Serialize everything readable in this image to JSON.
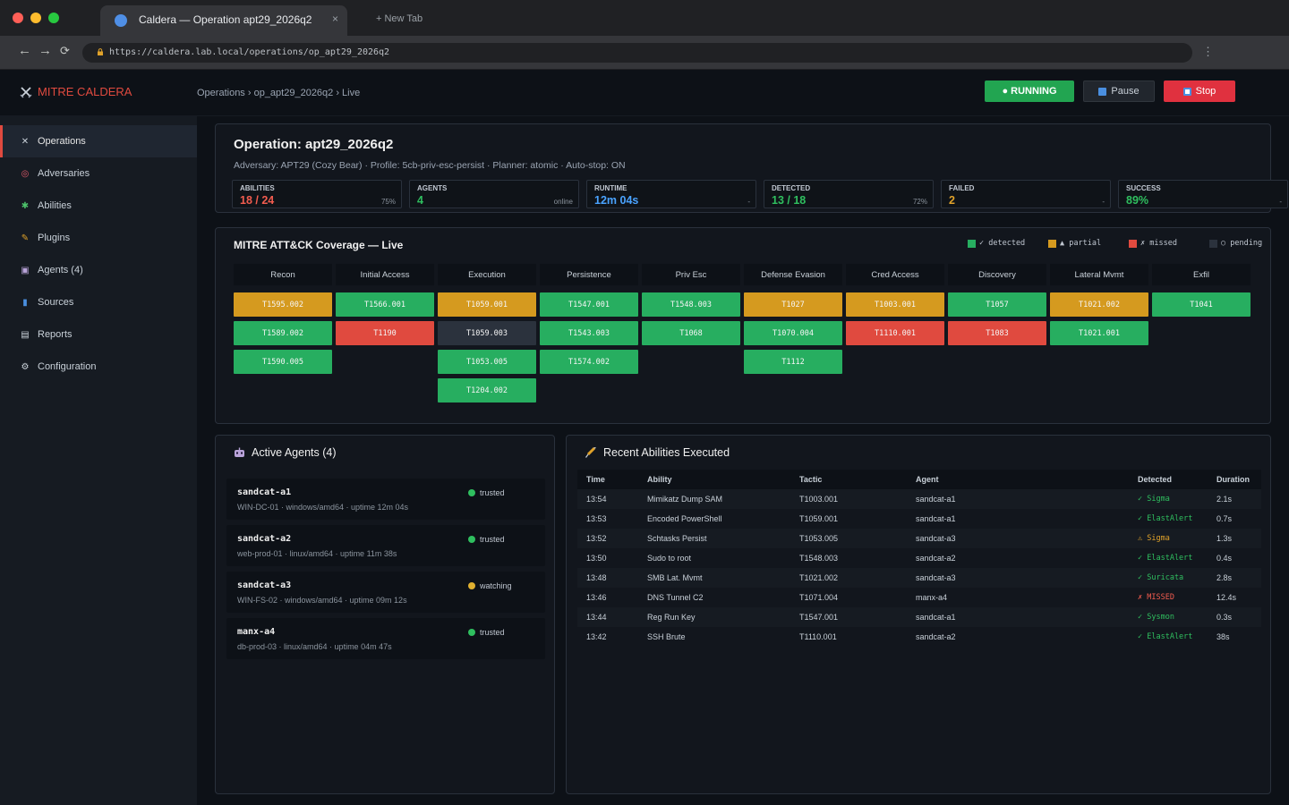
{
  "browser": {
    "tab_title": "Caldera — Operation apt29_2026q2",
    "tab_close": "×",
    "new_tab": "+ New Tab",
    "back": "←",
    "forward": "→",
    "reload": "⟳",
    "url": "https://caldera.lab.local/operations/op_apt29_2026q2",
    "menu": "⋮"
  },
  "header": {
    "logo": "MITRE CALDERA",
    "breadcrumb": "Operations › op_apt29_2026q2 › Live",
    "running_label": "● RUNNING",
    "pause_label": "Pause",
    "stop_label": "Stop"
  },
  "sidebar": {
    "items": [
      {
        "label": "Operations",
        "icon": "crossed-swords-icon",
        "glyph": "✕"
      },
      {
        "label": "Adversaries",
        "icon": "target-icon",
        "glyph": "◎"
      },
      {
        "label": "Abilities",
        "icon": "puzzle-icon",
        "glyph": "✱"
      },
      {
        "label": "Plugins",
        "icon": "plug-icon",
        "glyph": "✎"
      },
      {
        "label": "Agents (4)",
        "icon": "robot-icon",
        "glyph": "▣"
      },
      {
        "label": "Sources",
        "icon": "chart-icon",
        "glyph": "▮"
      },
      {
        "label": "Reports",
        "icon": "clipboard-icon",
        "glyph": "▤"
      },
      {
        "label": "Configuration",
        "icon": "gear-icon",
        "glyph": "⚙"
      }
    ]
  },
  "operation": {
    "title": "Operation: apt29_2026q2",
    "subtitle": "Adversary: APT29 (Cozy Bear) · Profile: 5cb-priv-esc-persist · Planner: atomic · Auto-stop: ON",
    "stats": [
      {
        "label": "ABILITIES",
        "value": "18 / 24",
        "sub": "75%",
        "color": "#f25c4f"
      },
      {
        "label": "AGENTS",
        "value": "4",
        "sub": "online",
        "color": "#2fbf5f"
      },
      {
        "label": "RUNTIME",
        "value": "12m 04s",
        "sub": "-",
        "color": "#4aa3ff"
      },
      {
        "label": "DETECTED",
        "value": "13 / 18",
        "sub": "72%",
        "color": "#2fbf5f"
      },
      {
        "label": "FAILED",
        "value": "2",
        "sub": "-",
        "color": "#e0a22a"
      },
      {
        "label": "SUCCESS",
        "value": "89%",
        "sub": "-",
        "color": "#2fbf5f"
      }
    ]
  },
  "coverage": {
    "title": "MITRE ATT&CK Coverage — Live",
    "legend": [
      {
        "label": "✓ detected",
        "color": "#27ae60"
      },
      {
        "label": "▲ partial",
        "color": "#d59a1f"
      },
      {
        "label": "✗ missed",
        "color": "#e04a3f"
      },
      {
        "label": "○ pending",
        "color": "#2b323d"
      }
    ],
    "colors": {
      "detected": "#27ae60",
      "partial": "#d59a1f",
      "missed": "#e04a3f",
      "pending": "#2b323d"
    },
    "tactics": [
      {
        "name": "Recon",
        "techniques": [
          {
            "id": "T1595.002",
            "status": "partial"
          },
          {
            "id": "T1589.002",
            "status": "detected"
          },
          {
            "id": "T1590.005",
            "status": "detected"
          }
        ]
      },
      {
        "name": "Initial Access",
        "techniques": [
          {
            "id": "T1566.001",
            "status": "detected"
          },
          {
            "id": "T1190",
            "status": "missed"
          }
        ]
      },
      {
        "name": "Execution",
        "techniques": [
          {
            "id": "T1059.001",
            "status": "partial"
          },
          {
            "id": "T1059.003",
            "status": "pending"
          },
          {
            "id": "T1053.005",
            "status": "detected"
          },
          {
            "id": "T1204.002",
            "status": "detected"
          }
        ]
      },
      {
        "name": "Persistence",
        "techniques": [
          {
            "id": "T1547.001",
            "status": "detected"
          },
          {
            "id": "T1543.003",
            "status": "detected"
          },
          {
            "id": "T1574.002",
            "status": "detected"
          }
        ]
      },
      {
        "name": "Priv Esc",
        "techniques": [
          {
            "id": "T1548.003",
            "status": "detected"
          },
          {
            "id": "T1068",
            "status": "detected"
          }
        ]
      },
      {
        "name": "Defense Evasion",
        "techniques": [
          {
            "id": "T1027",
            "status": "partial"
          },
          {
            "id": "T1070.004",
            "status": "detected"
          },
          {
            "id": "T1112",
            "status": "detected"
          }
        ]
      },
      {
        "name": "Cred Access",
        "techniques": [
          {
            "id": "T1003.001",
            "status": "partial"
          },
          {
            "id": "T1110.001",
            "status": "missed"
          }
        ]
      },
      {
        "name": "Discovery",
        "techniques": [
          {
            "id": "T1057",
            "status": "detected"
          },
          {
            "id": "T1083",
            "status": "missed"
          }
        ]
      },
      {
        "name": "Lateral Mvmt",
        "techniques": [
          {
            "id": "T1021.002",
            "status": "partial"
          },
          {
            "id": "T1021.001",
            "status": "detected"
          }
        ]
      },
      {
        "name": "Exfil",
        "techniques": [
          {
            "id": "T1041",
            "status": "detected"
          }
        ]
      }
    ]
  },
  "agents": {
    "title": "Active Agents (4)",
    "list": [
      {
        "name": "sandcat-a1",
        "meta": "WIN-DC-01 · windows/amd64 · uptime 12m 04s",
        "status": "trusted",
        "status_color": "#2fbf5f"
      },
      {
        "name": "sandcat-a2",
        "meta": "web-prod-01 · linux/amd64 · uptime 11m 38s",
        "status": "trusted",
        "status_color": "#2fbf5f"
      },
      {
        "name": "sandcat-a3",
        "meta": "WIN-FS-02 · windows/amd64 · uptime 09m 12s",
        "status": "watching",
        "status_color": "#e0b030"
      },
      {
        "name": "manx-a4",
        "meta": "db-prod-03 · linux/amd64 · uptime 04m 47s",
        "status": "trusted",
        "status_color": "#2fbf5f"
      }
    ]
  },
  "recent": {
    "title": "Recent Abilities Executed",
    "columns": [
      "Time",
      "Ability",
      "Tactic",
      "Agent",
      "Detected",
      "Duration"
    ],
    "rows": [
      {
        "time": "13:54",
        "ability": "Mimikatz Dump SAM",
        "tactic": "T1003.001",
        "agent": "sandcat-a1",
        "detected": "✓ Sigma",
        "det_color": "#2fbf5f",
        "duration": "2.1s"
      },
      {
        "time": "13:53",
        "ability": "Encoded PowerShell",
        "tactic": "T1059.001",
        "agent": "sandcat-a1",
        "detected": "✓ ElastAlert",
        "det_color": "#2fbf5f",
        "duration": "0.7s"
      },
      {
        "time": "13:52",
        "ability": "Schtasks Persist",
        "tactic": "T1053.005",
        "agent": "sandcat-a3",
        "detected": "⚠ Sigma",
        "det_color": "#e0a22a",
        "duration": "1.3s"
      },
      {
        "time": "13:50",
        "ability": "Sudo to root",
        "tactic": "T1548.003",
        "agent": "sandcat-a2",
        "detected": "✓ ElastAlert",
        "det_color": "#2fbf5f",
        "duration": "0.4s"
      },
      {
        "time": "13:48",
        "ability": "SMB Lat. Mvmt",
        "tactic": "T1021.002",
        "agent": "sandcat-a3",
        "detected": "✓ Suricata",
        "det_color": "#2fbf5f",
        "duration": "2.8s"
      },
      {
        "time": "13:46",
        "ability": "DNS Tunnel C2",
        "tactic": "T1071.004",
        "agent": "manx-a4",
        "detected": "✗ MISSED",
        "det_color": "#f25c4f",
        "duration": "12.4s"
      },
      {
        "time": "13:44",
        "ability": "Reg Run Key",
        "tactic": "T1547.001",
        "agent": "sandcat-a1",
        "detected": "✓ Sysmon",
        "det_color": "#2fbf5f",
        "duration": "0.3s"
      },
      {
        "time": "13:42",
        "ability": "SSH Brute",
        "tactic": "T1110.001",
        "agent": "sandcat-a2",
        "detected": "✓ ElastAlert",
        "det_color": "#2fbf5f",
        "duration": "38s"
      }
    ]
  }
}
